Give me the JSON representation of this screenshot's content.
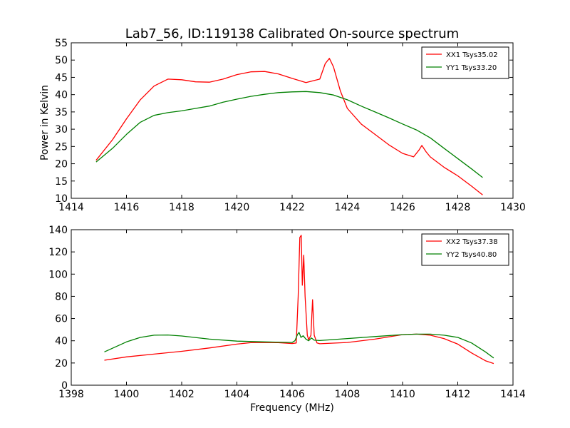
{
  "chart_data": [
    {
      "type": "line",
      "title": "Lab7_56, ID:119138 Calibrated On-source spectrum",
      "xlabel": "",
      "ylabel": "Power in Kelvin",
      "xlim": [
        1414,
        1430
      ],
      "ylim": [
        10,
        55
      ],
      "xticks": [
        "1414",
        "1416",
        "1418",
        "1420",
        "1422",
        "1424",
        "1426",
        "1428",
        "1430"
      ],
      "yticks": [
        "10",
        "15",
        "20",
        "25",
        "30",
        "35",
        "40",
        "45",
        "50",
        "55"
      ],
      "legend_position": "top-right",
      "series": [
        {
          "name": "XX1 Tsys35.02",
          "color": "#ff0000",
          "points": [
            [
              1414.9,
              21
            ],
            [
              1415.5,
              27
            ],
            [
              1416.0,
              33
            ],
            [
              1416.5,
              38.5
            ],
            [
              1417.0,
              42.5
            ],
            [
              1417.5,
              44.5
            ],
            [
              1418.0,
              44.3
            ],
            [
              1418.5,
              43.7
            ],
            [
              1419.0,
              43.6
            ],
            [
              1419.5,
              44.5
            ],
            [
              1420.0,
              45.8
            ],
            [
              1420.5,
              46.6
            ],
            [
              1421.0,
              46.7
            ],
            [
              1421.5,
              46
            ],
            [
              1422.0,
              44.7
            ],
            [
              1422.5,
              43.5
            ],
            [
              1423.0,
              44.5
            ],
            [
              1423.2,
              49
            ],
            [
              1423.35,
              50.5
            ],
            [
              1423.5,
              48
            ],
            [
              1423.75,
              41
            ],
            [
              1424.0,
              36
            ],
            [
              1424.5,
              31.5
            ],
            [
              1425.0,
              28.5
            ],
            [
              1425.5,
              25.5
            ],
            [
              1426.0,
              23
            ],
            [
              1426.4,
              22
            ],
            [
              1426.6,
              24
            ],
            [
              1426.7,
              25.3
            ],
            [
              1426.85,
              23.5
            ],
            [
              1427.0,
              22
            ],
            [
              1427.5,
              19
            ],
            [
              1428.0,
              16.5
            ],
            [
              1428.5,
              13.5
            ],
            [
              1428.9,
              11
            ]
          ]
        },
        {
          "name": "YY1 Tsys33.20",
          "color": "#008000",
          "points": [
            [
              1414.9,
              20.5
            ],
            [
              1415.5,
              24.5
            ],
            [
              1416.0,
              28.5
            ],
            [
              1416.5,
              32
            ],
            [
              1417.0,
              34
            ],
            [
              1417.5,
              34.8
            ],
            [
              1418.0,
              35.3
            ],
            [
              1418.5,
              36
            ],
            [
              1419.0,
              36.7
            ],
            [
              1419.5,
              37.8
            ],
            [
              1420.0,
              38.7
            ],
            [
              1420.5,
              39.5
            ],
            [
              1421.0,
              40.1
            ],
            [
              1421.5,
              40.6
            ],
            [
              1422.0,
              40.8
            ],
            [
              1422.5,
              40.9
            ],
            [
              1423.0,
              40.6
            ],
            [
              1423.5,
              39.9
            ],
            [
              1424.0,
              38.5
            ],
            [
              1424.5,
              36.7
            ],
            [
              1425.0,
              35
            ],
            [
              1425.5,
              33.3
            ],
            [
              1426.0,
              31.5
            ],
            [
              1426.5,
              29.8
            ],
            [
              1427.0,
              27.5
            ],
            [
              1427.5,
              24.5
            ],
            [
              1428.0,
              21.5
            ],
            [
              1428.5,
              18.5
            ],
            [
              1428.9,
              16
            ]
          ]
        }
      ]
    },
    {
      "type": "line",
      "title": "",
      "xlabel": "Frequency (MHz)",
      "ylabel": "",
      "xlim": [
        1398,
        1414
      ],
      "ylim": [
        0,
        140
      ],
      "xticks": [
        "1398",
        "1400",
        "1402",
        "1404",
        "1406",
        "1408",
        "1410",
        "1412",
        "1414"
      ],
      "yticks": [
        "0",
        "20",
        "40",
        "60",
        "80",
        "100",
        "120",
        "140"
      ],
      "legend_position": "top-right",
      "series": [
        {
          "name": "XX2 Tsys37.38",
          "color": "#ff0000",
          "points": [
            [
              1399.2,
              22.5
            ],
            [
              1400.0,
              25.5
            ],
            [
              1401.0,
              28
            ],
            [
              1402.0,
              30.5
            ],
            [
              1403.0,
              33.5
            ],
            [
              1404.0,
              37
            ],
            [
              1404.5,
              38.3
            ],
            [
              1405.0,
              38.5
            ],
            [
              1405.5,
              38.3
            ],
            [
              1406.0,
              37.5
            ],
            [
              1406.15,
              38
            ],
            [
              1406.22,
              80
            ],
            [
              1406.28,
              133
            ],
            [
              1406.33,
              135
            ],
            [
              1406.37,
              90
            ],
            [
              1406.42,
              117
            ],
            [
              1406.47,
              80
            ],
            [
              1406.55,
              45
            ],
            [
              1406.6,
              41
            ],
            [
              1406.68,
              45
            ],
            [
              1406.74,
              77
            ],
            [
              1406.8,
              45
            ],
            [
              1406.9,
              38
            ],
            [
              1407.0,
              37.3
            ],
            [
              1408.0,
              38.5
            ],
            [
              1409.0,
              41.5
            ],
            [
              1410.0,
              45.5
            ],
            [
              1410.5,
              46
            ],
            [
              1411.0,
              45
            ],
            [
              1411.5,
              42
            ],
            [
              1412.0,
              37
            ],
            [
              1412.5,
              29
            ],
            [
              1413.0,
              22
            ],
            [
              1413.3,
              19.5
            ]
          ]
        },
        {
          "name": "YY2 Tsys40.80",
          "color": "#008000",
          "points": [
            [
              1399.2,
              30
            ],
            [
              1400.0,
              39
            ],
            [
              1400.5,
              43
            ],
            [
              1401.0,
              45
            ],
            [
              1401.5,
              45.2
            ],
            [
              1402.0,
              44.3
            ],
            [
              1403.0,
              41.5
            ],
            [
              1404.0,
              39.7
            ],
            [
              1405.0,
              39
            ],
            [
              1406.0,
              38.5
            ],
            [
              1406.1,
              40
            ],
            [
              1406.2,
              46
            ],
            [
              1406.25,
              47.5
            ],
            [
              1406.32,
              43
            ],
            [
              1406.4,
              44.5
            ],
            [
              1406.5,
              41.5
            ],
            [
              1406.6,
              40
            ],
            [
              1406.7,
              42.5
            ],
            [
              1406.8,
              40.5
            ],
            [
              1407.0,
              40.2
            ],
            [
              1408.0,
              42
            ],
            [
              1409.0,
              43.8
            ],
            [
              1410.0,
              45.5
            ],
            [
              1410.5,
              46
            ],
            [
              1411.0,
              46
            ],
            [
              1411.5,
              45
            ],
            [
              1412.0,
              43
            ],
            [
              1412.5,
              38
            ],
            [
              1413.0,
              30
            ],
            [
              1413.3,
              24.5
            ]
          ]
        }
      ]
    }
  ]
}
